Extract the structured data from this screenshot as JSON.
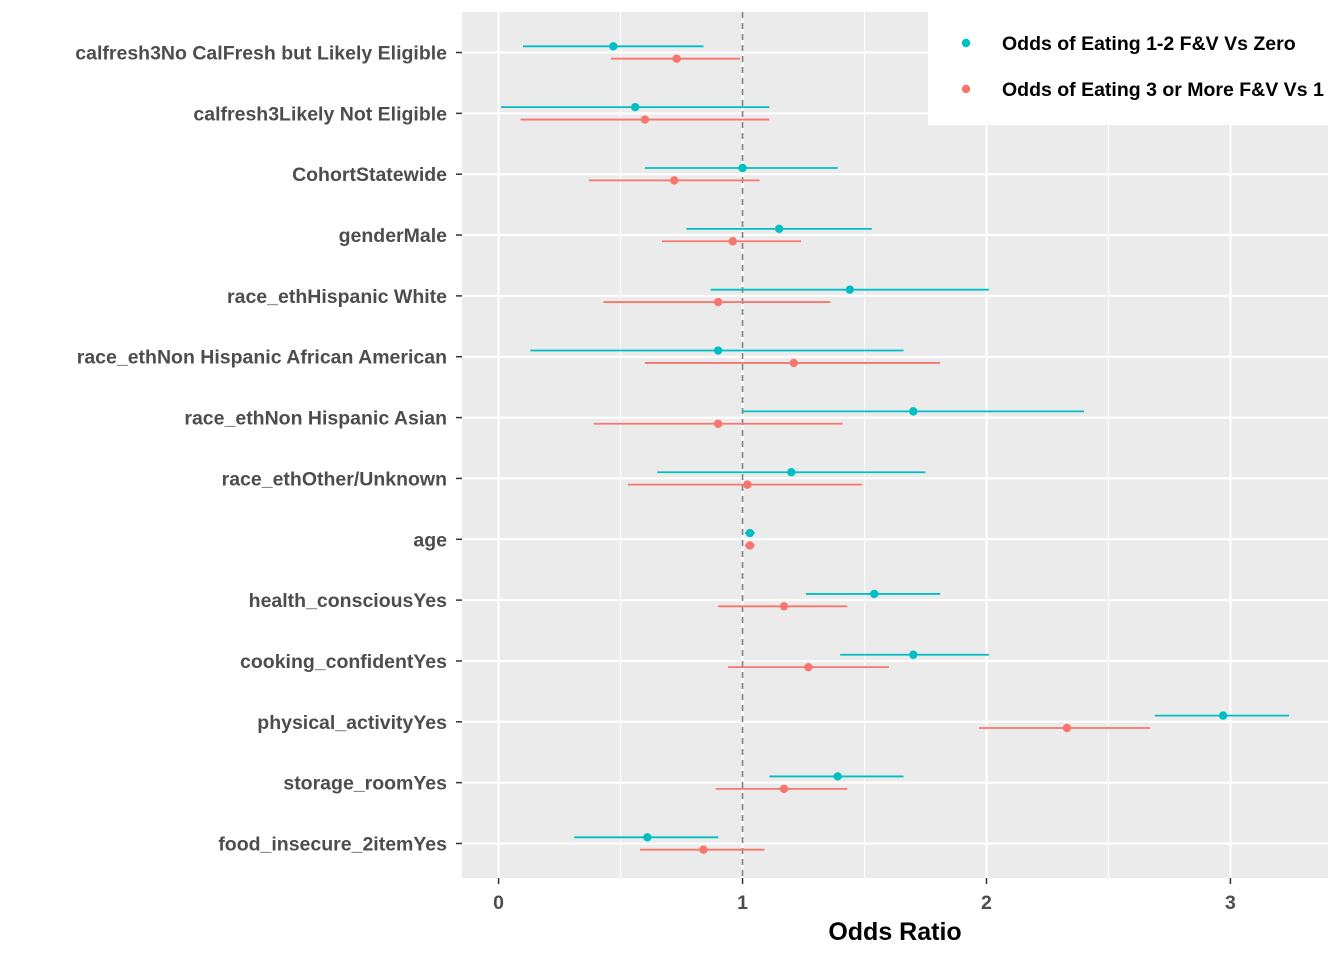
{
  "chart_data": {
    "type": "forest",
    "xlabel": "Odds Ratio",
    "ylabel": "",
    "xlim": [
      -0.15,
      3.4
    ],
    "xticks": [
      0,
      1,
      2,
      3
    ],
    "xtick_labels": [
      "0",
      "1",
      "2",
      "3"
    ],
    "reference_line": 1,
    "grid": true,
    "legend_position": "top-right",
    "categories": [
      "calfresh3No CalFresh but Likely Eligible",
      "calfresh3Likely Not Eligible",
      "CohortStatewide",
      "genderMale",
      "race_ethHispanic White",
      "race_ethNon Hispanic African American",
      "race_ethNon Hispanic Asian",
      "race_ethOther/Unknown",
      "age",
      "health_consciousYes",
      "cooking_confidentYes",
      "physical_activityYes",
      "storage_roomYes",
      "food_insecure_2itemYes"
    ],
    "series": [
      {
        "name": "Odds of Eating 1-2 F&V Vs Zero",
        "color": "#00BFC4",
        "estimates": [
          0.47,
          0.56,
          1.0,
          1.15,
          1.44,
          0.9,
          1.7,
          1.2,
          1.03,
          1.54,
          1.7,
          2.97,
          1.39,
          0.61
        ],
        "lower": [
          0.1,
          0.01,
          0.6,
          0.77,
          0.87,
          0.13,
          1.0,
          0.65,
          1.01,
          1.26,
          1.4,
          2.69,
          1.11,
          0.31
        ],
        "upper": [
          0.84,
          1.11,
          1.39,
          1.53,
          2.01,
          1.66,
          2.4,
          1.75,
          1.05,
          1.81,
          2.01,
          3.24,
          1.66,
          0.9
        ]
      },
      {
        "name": "Odds of Eating 3 or More F&V Vs 1",
        "color": "#F8766D",
        "estimates": [
          0.73,
          0.6,
          0.72,
          0.96,
          0.9,
          1.21,
          0.9,
          1.02,
          1.03,
          1.17,
          1.27,
          2.33,
          1.17,
          0.84
        ],
        "lower": [
          0.46,
          0.09,
          0.37,
          0.67,
          0.43,
          0.6,
          0.39,
          0.53,
          1.01,
          0.9,
          0.94,
          1.97,
          0.89,
          0.58
        ],
        "upper": [
          0.99,
          1.11,
          1.07,
          1.24,
          1.36,
          1.81,
          1.41,
          1.49,
          1.05,
          1.43,
          1.6,
          2.67,
          1.43,
          1.09
        ]
      }
    ]
  }
}
